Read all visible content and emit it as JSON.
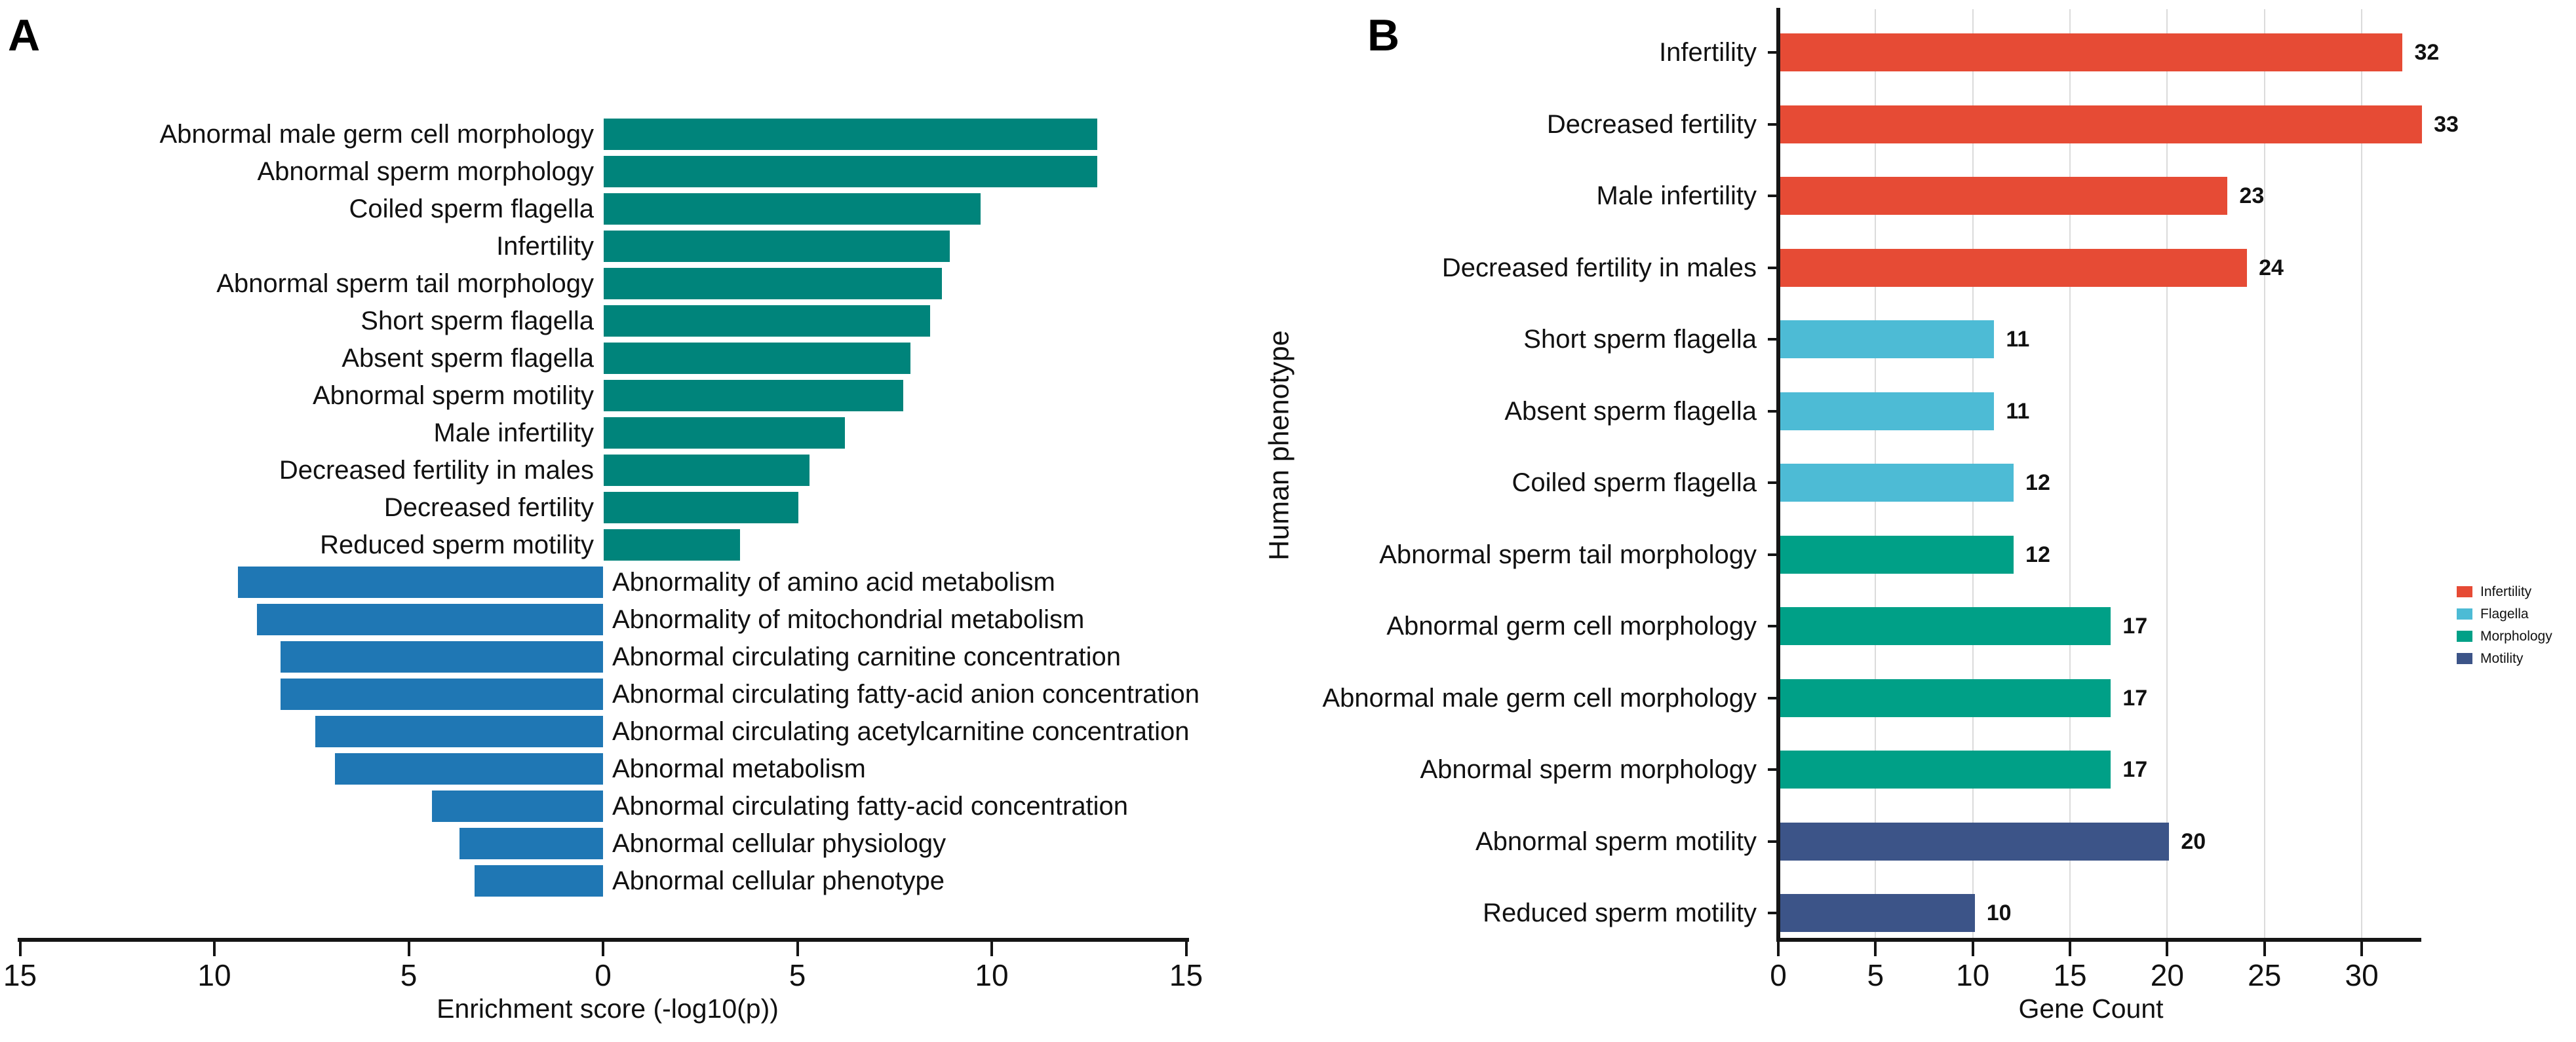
{
  "figure": {
    "panel_a_label": "A",
    "panel_b_label": "B",
    "background": "#FFFFFF"
  },
  "chart_data": [
    {
      "id": "panel_A",
      "type": "bar",
      "variant": "diverging-horizontal",
      "xlabel": "Enrichment score (-log10(p))",
      "x_tick_labels": [
        "15",
        "10",
        "5",
        "0",
        "5",
        "10",
        "15"
      ],
      "x_tick_values": [
        -15,
        -10,
        -5,
        0,
        5,
        10,
        15
      ],
      "xlim": [
        -15,
        15
      ],
      "grid": "off",
      "series": [
        {
          "name": "right_green",
          "direction": "right",
          "color": "#00847B",
          "items": [
            {
              "label": "Abnormal male germ cell morphology",
              "value": 12.7
            },
            {
              "label": "Abnormal sperm morphology",
              "value": 12.7
            },
            {
              "label": "Coiled sperm flagella",
              "value": 9.7
            },
            {
              "label": "Infertility",
              "value": 8.9
            },
            {
              "label": "Abnormal sperm tail morphology",
              "value": 8.7
            },
            {
              "label": "Short sperm flagella",
              "value": 8.4
            },
            {
              "label": "Absent sperm flagella",
              "value": 7.9
            },
            {
              "label": "Abnormal sperm motility",
              "value": 7.7
            },
            {
              "label": "Male infertility",
              "value": 6.2
            },
            {
              "label": "Decreased fertility in males",
              "value": 5.3
            },
            {
              "label": "Decreased fertility",
              "value": 5.0
            },
            {
              "label": "Reduced sperm motility",
              "value": 3.5
            }
          ]
        },
        {
          "name": "left_blue",
          "direction": "left",
          "color": "#1F77B4",
          "items": [
            {
              "label": "Abnormality of amino acid metabolism",
              "value": 9.4
            },
            {
              "label": "Abnormality of mitochondrial metabolism",
              "value": 8.9
            },
            {
              "label": "Abnormal circulating carnitine concentration",
              "value": 8.3
            },
            {
              "label": "Abnormal circulating fatty-acid anion concentration",
              "value": 8.3
            },
            {
              "label": "Abnormal circulating acetylcarnitine concentration",
              "value": 7.4
            },
            {
              "label": "Abnormal metabolism",
              "value": 6.9
            },
            {
              "label": "Abnormal circulating fatty-acid concentration",
              "value": 4.4
            },
            {
              "label": "Abnormal cellular physiology",
              "value": 3.7
            },
            {
              "label": "Abnormal cellular phenotype",
              "value": 3.3
            }
          ]
        }
      ]
    },
    {
      "id": "panel_B",
      "type": "bar",
      "variant": "horizontal",
      "xlabel": "Gene Count",
      "ylabel": "Human phenotype",
      "x_tick_labels": [
        "0",
        "5",
        "10",
        "15",
        "20",
        "25",
        "30"
      ],
      "x_tick_values": [
        0,
        5,
        10,
        15,
        20,
        25,
        30
      ],
      "xlim": [
        0,
        33.5
      ],
      "grid": "vertical",
      "legend_position": "right",
      "categories": [
        "Infertility",
        "Decreased fertility",
        "Male infertility",
        "Decreased fertility in males",
        "Short sperm flagella",
        "Absent sperm flagella",
        "Coiled sperm flagella",
        "Abnormal sperm tail morphology",
        "Abnormal germ cell morphology",
        "Abnormal male germ cell morphology",
        "Abnormal sperm morphology",
        "Abnormal sperm motility",
        "Reduced sperm motility"
      ],
      "values": [
        32,
        33,
        23,
        24,
        11,
        11,
        12,
        12,
        17,
        17,
        17,
        20,
        10
      ],
      "groups": [
        "Infertility",
        "Infertility",
        "Infertility",
        "Infertility",
        "Flagella",
        "Flagella",
        "Flagella",
        "Morphology",
        "Morphology",
        "Morphology",
        "Morphology",
        "Motility",
        "Motility"
      ],
      "legend": [
        {
          "label": "Infertility",
          "color": "#E64B35"
        },
        {
          "label": "Flagella",
          "color": "#4DBBD5"
        },
        {
          "label": "Morphology",
          "color": "#00A087"
        },
        {
          "label": "Motility",
          "color": "#3C5488"
        }
      ]
    }
  ]
}
